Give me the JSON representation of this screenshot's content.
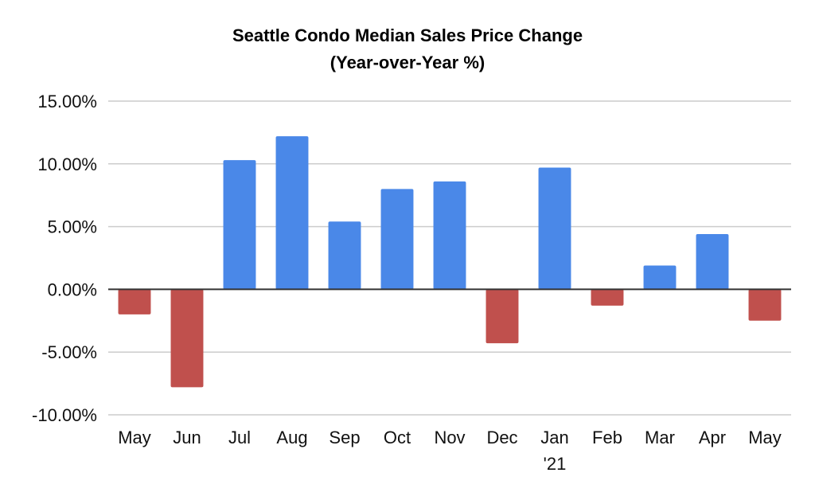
{
  "colors": {
    "positive": "#4a88e8",
    "negative": "#c0504d",
    "gridline": "#cccccc",
    "zero_line": "#333333",
    "text": "#000000"
  },
  "chart_data": {
    "type": "bar",
    "title": "Seattle Condo Median Sales Price Change",
    "subtitle": "(Year-over-Year %)",
    "categories": [
      "May",
      "Jun",
      "Jul",
      "Aug",
      "Sep",
      "Oct",
      "Nov",
      "Dec",
      "Jan '21",
      "Feb",
      "Mar",
      "Apr",
      "May"
    ],
    "category_labels": [
      [
        "May"
      ],
      [
        "Jun"
      ],
      [
        "Jul"
      ],
      [
        "Aug"
      ],
      [
        "Sep"
      ],
      [
        "Oct"
      ],
      [
        "Nov"
      ],
      [
        "Dec"
      ],
      [
        "Jan",
        "'21"
      ],
      [
        "Feb"
      ],
      [
        "Mar"
      ],
      [
        "Apr"
      ],
      [
        "May"
      ]
    ],
    "values": [
      -2.0,
      -7.8,
      10.3,
      12.2,
      5.4,
      8.0,
      8.6,
      -4.3,
      9.7,
      -1.3,
      1.9,
      4.4,
      -2.5
    ],
    "ylim": [
      -10,
      15
    ],
    "yticks": [
      15,
      10,
      5,
      0,
      -5,
      -10
    ],
    "ytick_labels": [
      "15.00%",
      "10.00%",
      "5.00%",
      "0.00%",
      "-5.00%",
      "-10.00%"
    ],
    "grid": true,
    "legend": false,
    "xlabel": "",
    "ylabel": ""
  }
}
